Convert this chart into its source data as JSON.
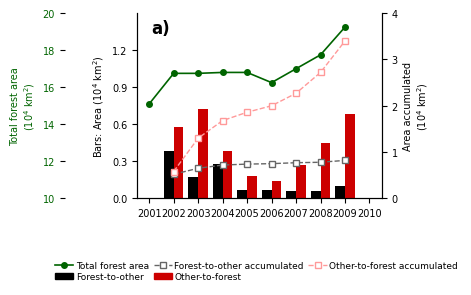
{
  "bar_years": [
    2002,
    2003,
    2004,
    2005,
    2006,
    2007,
    2008,
    2009
  ],
  "forest_to_other": [
    0.38,
    0.17,
    0.28,
    0.07,
    0.07,
    0.06,
    0.06,
    0.1
  ],
  "other_to_forest": [
    0.58,
    0.72,
    0.38,
    0.18,
    0.14,
    0.27,
    0.45,
    0.68
  ],
  "forest_to_other_accum": [
    0.52,
    0.65,
    0.72,
    0.74,
    0.75,
    0.77,
    0.78,
    0.82
  ],
  "other_to_forest_accum": [
    0.58,
    1.3,
    1.68,
    1.86,
    2.0,
    2.27,
    2.72,
    3.4
  ],
  "total_forest_years": [
    2001,
    2002,
    2003,
    2004,
    2005,
    2006,
    2007,
    2008,
    2009
  ],
  "total_forest_area": [
    15.1,
    16.75,
    16.75,
    16.8,
    16.8,
    16.25,
    17.0,
    17.75,
    19.25
  ],
  "xlim": [
    2000.5,
    2010.5
  ],
  "bar_ylim": [
    0.0,
    1.5
  ],
  "bar_yticks": [
    0.0,
    0.3,
    0.6,
    0.9,
    1.2
  ],
  "accum_ylim": [
    0,
    4
  ],
  "accum_yticks": [
    0,
    1,
    2,
    3,
    4
  ],
  "forest_ylim": [
    10,
    20
  ],
  "forest_yticks": [
    10,
    12,
    14,
    16,
    18,
    20
  ],
  "xticks": [
    2001,
    2002,
    2003,
    2004,
    2005,
    2006,
    2007,
    2008,
    2009,
    2010
  ],
  "title": "a)",
  "bar_color_black": "#000000",
  "bar_color_red": "#cc0000",
  "line_color_green": "#006400",
  "line_color_gray": "#666666",
  "line_color_pink": "#ff9999",
  "bar_width": 0.4
}
